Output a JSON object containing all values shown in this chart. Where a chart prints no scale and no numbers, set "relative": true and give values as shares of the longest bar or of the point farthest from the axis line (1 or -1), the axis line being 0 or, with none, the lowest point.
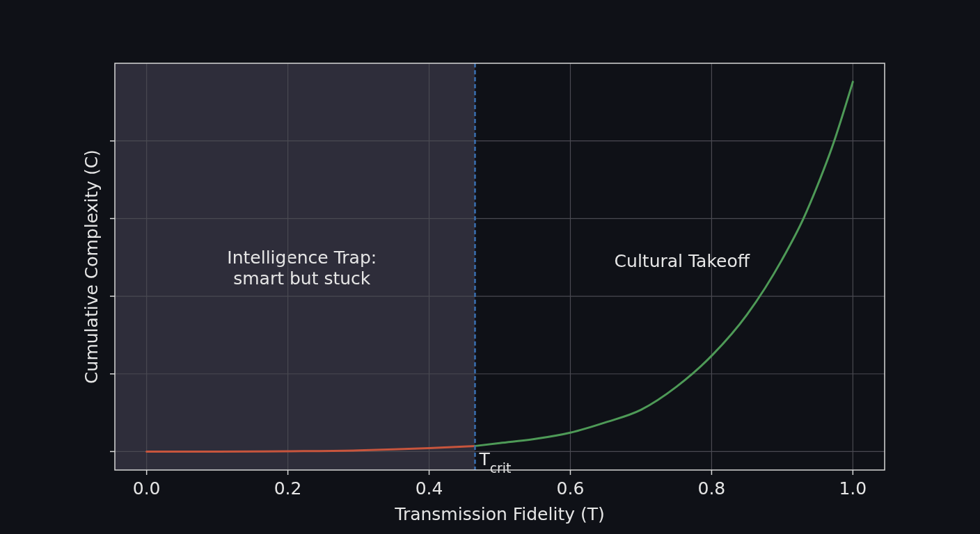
{
  "chart_data": {
    "type": "line",
    "relative": true,
    "xlabel": "Transmission Fidelity (T)",
    "ylabel": "Cumulative Complexity (C)",
    "xlim": [
      -0.045,
      1.045
    ],
    "xticks": [
      {
        "value": 0,
        "label": "0.0"
      },
      0.2,
      0.4,
      0.6,
      0.8,
      {
        "value": 1,
        "label": "1.0"
      }
    ],
    "grid": true,
    "line_style": "solid",
    "marker": "none",
    "series": [
      {
        "color": "#c8553d",
        "x": [
          0,
          0.1,
          0.2,
          0.3,
          0.4,
          0.465
        ],
        "values": [
          0,
          0,
          0.001,
          0.003,
          0.009,
          0.015
        ]
      },
      {
        "color": "#4e9a57",
        "x": [
          0.465,
          0.5,
          0.55,
          0.6,
          0.65,
          0.7,
          0.75,
          0.8,
          0.85,
          0.9,
          0.93,
          0.95,
          0.97,
          1.0
        ],
        "values": [
          0.015,
          0.023,
          0.034,
          0.051,
          0.079,
          0.113,
          0.175,
          0.259,
          0.37,
          0.52,
          0.63,
          0.72,
          0.82,
          1
        ]
      }
    ],
    "bands": [
      {
        "axis": "x",
        "from": -0.045,
        "to": 0.465,
        "label": "Intelligence Trap:\nsmart but stuck",
        "color": "#2e2d3a"
      }
    ],
    "ref_lines": [
      {
        "axis": "x",
        "value": 0.465,
        "label": "T$_{crit}$",
        "color": "#3a6fb0",
        "line_style": "dashed"
      }
    ],
    "annotations": [
      "Cultural Takeoff"
    ]
  }
}
